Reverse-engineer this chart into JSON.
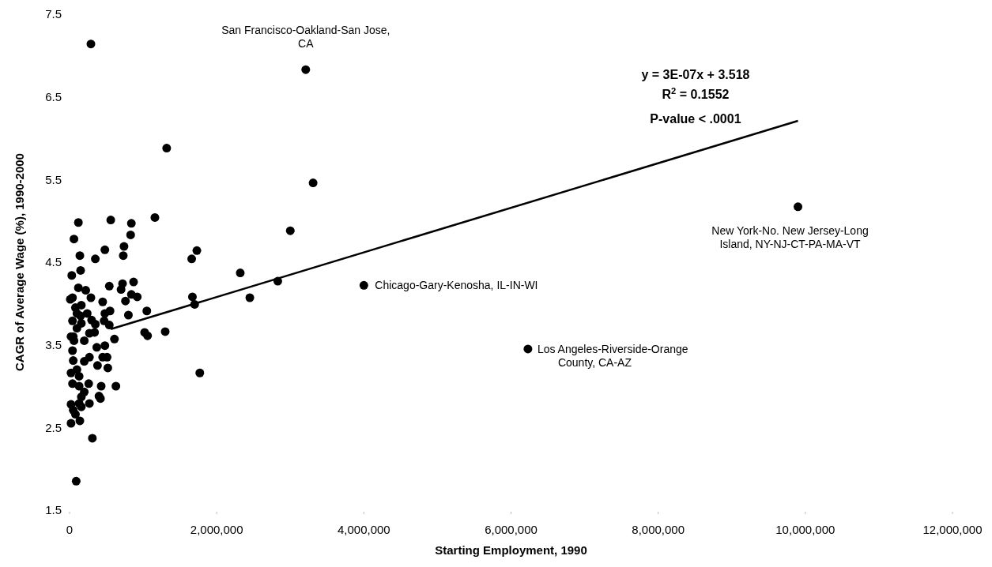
{
  "chart_data": {
    "type": "scatter",
    "xlabel": "Starting Employment, 1990",
    "ylabel": "CAGR of Average Wage (%), 1990-2000",
    "xlim": [
      0,
      12000000
    ],
    "ylim": [
      1.5,
      7.5
    ],
    "xticks": [
      {
        "value": 0,
        "label": "0"
      },
      {
        "value": 2000000,
        "label": "2,000,000"
      },
      {
        "value": 4000000,
        "label": "4,000,000"
      },
      {
        "value": 6000000,
        "label": "6,000,000"
      },
      {
        "value": 8000000,
        "label": "8,000,000"
      },
      {
        "value": 10000000,
        "label": "10,000,000"
      },
      {
        "value": 12000000,
        "label": "12,000,000"
      }
    ],
    "yticks": [
      1.5,
      2.5,
      3.5,
      4.5,
      5.5,
      6.5,
      7.5
    ],
    "grid": false,
    "marker": "circle",
    "series": [
      {
        "color": "#000000",
        "x": [
          290000,
          3210000,
          1320000,
          3310000,
          3000000,
          9900000,
          4000000,
          6230000,
          1160000,
          1730000,
          1660000,
          2320000,
          2830000,
          2450000,
          1670000,
          1700000,
          1050000,
          1300000,
          1020000,
          1060000,
          1770000,
          120000,
          560000,
          840000,
          60000,
          830000,
          740000,
          480000,
          140000,
          350000,
          730000,
          30000,
          150000,
          540000,
          720000,
          700000,
          870000,
          120000,
          220000,
          290000,
          40000,
          840000,
          920000,
          450000,
          760000,
          550000,
          480000,
          800000,
          160000,
          10000,
          100000,
          240000,
          40000,
          160000,
          470000,
          540000,
          20000,
          340000,
          50000,
          270000,
          610000,
          370000,
          480000,
          40000,
          50000,
          270000,
          450000,
          510000,
          380000,
          520000,
          20000,
          130000,
          40000,
          260000,
          130000,
          430000,
          630000,
          200000,
          400000,
          420000,
          160000,
          20000,
          130000,
          270000,
          50000,
          160000,
          80000,
          20000,
          140000,
          310000,
          90000,
          100000,
          200000,
          150000,
          80000,
          300000,
          200000,
          100000,
          60000,
          350000
        ],
        "values": [
          7.14,
          6.83,
          5.88,
          5.46,
          4.88,
          5.17,
          4.22,
          3.45,
          5.04,
          4.64,
          4.54,
          4.37,
          4.27,
          4.07,
          4.08,
          3.99,
          3.91,
          3.66,
          3.65,
          3.61,
          3.16,
          4.98,
          5.01,
          4.97,
          4.78,
          4.83,
          4.69,
          4.65,
          4.58,
          4.54,
          4.58,
          4.34,
          4.4,
          4.21,
          4.24,
          4.17,
          4.26,
          4.19,
          4.16,
          4.07,
          4.07,
          4.11,
          4.08,
          4.02,
          4.03,
          3.91,
          3.88,
          3.86,
          3.98,
          4.05,
          3.88,
          3.88,
          3.79,
          3.76,
          3.79,
          3.74,
          3.6,
          3.65,
          3.6,
          3.64,
          3.57,
          3.47,
          3.49,
          3.43,
          3.31,
          3.35,
          3.35,
          3.35,
          3.25,
          3.22,
          3.16,
          3.12,
          3.03,
          3.03,
          3,
          3,
          3,
          2.93,
          2.88,
          2.85,
          2.87,
          2.78,
          2.79,
          2.79,
          2.71,
          2.75,
          2.66,
          2.55,
          2.58,
          2.37,
          1.85,
          3.7,
          3.55,
          3.85,
          3.95,
          3.8,
          3.3,
          3.2,
          3.55,
          3.75
        ]
      },
      {
        "type": "line",
        "color": "#000000",
        "marker": "none",
        "x": [
          560000,
          9900000
        ],
        "values": [
          3.69,
          6.21
        ]
      }
    ],
    "annotations": [
      "y = 3E-07x + 3.518",
      "R$^{2}$ = 0.1552",
      "P-value < .0001",
      {
        "text": "San Francisco-Oakland-San Jose,\nCA",
        "x": 3210000,
        "y": 6.83
      },
      {
        "text": "New York-No. New Jersey-Long\nIsland, NY-NJ-CT-PA-MA-VT",
        "x": 9900000,
        "y": 5.17
      },
      {
        "text": "Chicago-Gary-Kenosha, IL-IN-WI",
        "x": 4000000,
        "y": 4.22
      },
      {
        "text": "Los Angeles-Riverside-Orange\nCounty, CA-AZ",
        "x": 6230000,
        "y": 3.45
      }
    ]
  }
}
